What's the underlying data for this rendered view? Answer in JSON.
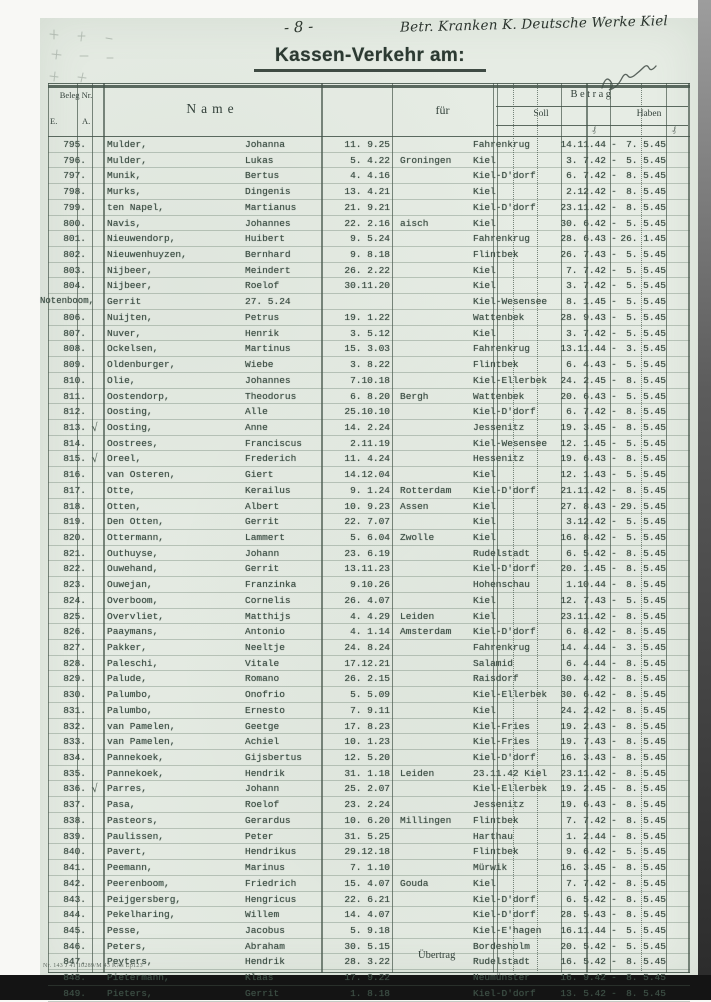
{
  "page": {
    "page_number": "- 8 -",
    "annotation_top": "Betr. Kranken K. Deutsche Werke Kiel",
    "title": "Kassen-Verkehr am:",
    "uebertrag_label": "Übertrag",
    "footer_code": "Nr. 143 J 41 10289/M 43 KAs Ep123",
    "paper_color": "#e6ece4",
    "ink_color": "#3d4f45",
    "rule_color": "#425248"
  },
  "table": {
    "headers": {
      "beleg_nr": "Beleg Nr.",
      "beleg_e": "E.",
      "beleg_a": "A.",
      "name": "Name",
      "fuer": "für",
      "betrag": "Betrag",
      "soll": "Soll",
      "haben": "Haben",
      "pfennig_mark": "₰"
    },
    "check_glyph": "√",
    "date_separator": "-",
    "rows": [
      {
        "nr": "795.",
        "surname": "Mulder,",
        "firstname": "Johanna",
        "birth": "11. 9.25",
        "fuer": "",
        "place": "Fahrenkrug",
        "soll": "14.11.44",
        "haben": "7. 5.45"
      },
      {
        "nr": "796.",
        "surname": "Mulder,",
        "firstname": "Lukas",
        "birth": "5. 4.22",
        "fuer": "Groningen",
        "place": "Kiel",
        "soll": "3. 7.42",
        "haben": "5. 5.45"
      },
      {
        "nr": "797.",
        "surname": "Munik,",
        "firstname": "Bertus",
        "birth": "4. 4.16",
        "fuer": "",
        "place": "Kiel-D'dorf",
        "soll": "6. 7.42",
        "haben": "8. 5.45"
      },
      {
        "nr": "798.",
        "surname": "Murks,",
        "firstname": "Dingenis",
        "birth": "13. 4.21",
        "fuer": "",
        "place": "Kiel",
        "soll": "2.12.42",
        "haben": "8. 5.45"
      },
      {
        "nr": "799.",
        "surname": "ten Napel,",
        "firstname": "Martianus",
        "birth": "21. 9.21",
        "fuer": "",
        "place": "Kiel-D'dorf",
        "soll": "23.11.42",
        "haben": "8. 5.45"
      },
      {
        "nr": "800.",
        "surname": "Navis,",
        "firstname": "Johannes",
        "birth": "22. 2.16",
        "fuer": "aisch",
        "place": "Kiel",
        "soll": "30. 6.42",
        "haben": "5. 5.45"
      },
      {
        "nr": "801.",
        "surname": "Nieuwendorp,",
        "firstname": "Huibert",
        "birth": "9. 5.24",
        "fuer": "",
        "place": "Fahrenkrug",
        "soll": "28. 6.43",
        "haben": "26. 1.45"
      },
      {
        "nr": "802.",
        "surname": "Nieuwenhuyzen,",
        "firstname": "Bernhard",
        "birth": "9. 8.18",
        "fuer": "",
        "place": "Flintbek",
        "soll": "26. 7.43",
        "haben": "5. 5.45"
      },
      {
        "nr": "803.",
        "surname": "Nijbeer,",
        "firstname": "Meindert",
        "birth": "26. 2.22",
        "fuer": "",
        "place": "Kiel",
        "soll": "7. 7.42",
        "haben": "5. 5.45"
      },
      {
        "nr": "804.",
        "surname": "Nijbeer,",
        "firstname": "Roelof",
        "birth": "30.11.20",
        "fuer": "",
        "place": "Kiel",
        "soll": "3. 7.42",
        "haben": "5. 5.45"
      },
      {
        "nr": "Notenboom,",
        "surname": "Gerrit",
        "firstname": "27. 5.24",
        "birth": "",
        "fuer": "",
        "place": "Kiel-Wesensee",
        "soll": "8. 1.45",
        "haben": "5. 5.45"
      },
      {
        "nr": "806.",
        "surname": "Nuijten,",
        "firstname": "Petrus",
        "birth": "19. 1.22",
        "fuer": "",
        "place": "Wattenbek",
        "soll": "28. 9.43",
        "haben": "5. 5.45"
      },
      {
        "nr": "807.",
        "surname": "Nuver,",
        "firstname": "Henrik",
        "birth": "3. 5.12",
        "fuer": "",
        "place": "Kiel",
        "soll": "3. 7.42",
        "haben": "5. 5.45"
      },
      {
        "nr": "808.",
        "surname": "Ockelsen,",
        "firstname": "Martinus",
        "birth": "15. 3.03",
        "fuer": "",
        "place": "Fahrenkrug",
        "soll": "13.11.44",
        "haben": "3. 5.45"
      },
      {
        "nr": "809.",
        "surname": "Oldenburger,",
        "firstname": "Wiebe",
        "birth": "3. 8.22",
        "fuer": "",
        "place": "Flintbek",
        "soll": "6. 4.43",
        "haben": "5. 5.45"
      },
      {
        "nr": "810.",
        "surname": "Olie,",
        "firstname": "Johannes",
        "birth": "7.10.18",
        "fuer": "",
        "place": "Kiel-Ellerbek",
        "soll": "24. 2.45",
        "haben": "8. 5.45"
      },
      {
        "nr": "811.",
        "surname": "Oostendorp,",
        "firstname": "Theodorus",
        "birth": "6. 8.20",
        "fuer": "Bergh",
        "place": "Wattenbek",
        "soll": "20. 6.43",
        "haben": "5. 5.45"
      },
      {
        "nr": "812.",
        "surname": "Oosting,",
        "firstname": "Alle",
        "birth": "25.10.10",
        "fuer": "",
        "place": "Kiel-D'dorf",
        "soll": "6. 7.42",
        "haben": "8. 5.45"
      },
      {
        "nr": "813.",
        "check": true,
        "surname": "Oosting,",
        "firstname": "Anne",
        "birth": "14. 2.24",
        "fuer": "",
        "place": "Jessenitz",
        "soll": "19. 3.45",
        "haben": "8. 5.45"
      },
      {
        "nr": "814.",
        "surname": "Oostrees,",
        "firstname": "Franciscus",
        "birth": "2.11.19",
        "fuer": "",
        "place": "Kiel-Wesensee",
        "soll": "12. 1.45",
        "haben": "5. 5.45"
      },
      {
        "nr": "815.",
        "check": true,
        "surname": "Oreel,",
        "firstname": "Frederich",
        "birth": "11. 4.24",
        "fuer": "",
        "place": "Hessenitz",
        "soll": "19. 6.43",
        "haben": "8. 5.45"
      },
      {
        "nr": "816.",
        "surname": "van Osteren,",
        "firstname": "Giert",
        "birth": "14.12.04",
        "fuer": "",
        "place": "Kiel",
        "soll": "12. 1.43",
        "haben": "5. 5.45"
      },
      {
        "nr": "817.",
        "surname": "Otte,",
        "firstname": "Kerailus",
        "birth": "9. 1.24",
        "fuer": "Rotterdam",
        "place": "Kiel-D'dorf",
        "soll": "21.11.42",
        "haben": "8. 5.45"
      },
      {
        "nr": "818.",
        "surname": "Otten,",
        "firstname": "Albert",
        "birth": "10. 9.23",
        "fuer": "Assen",
        "place": "Kiel",
        "soll": "27. 8.43",
        "haben": "29. 5.45"
      },
      {
        "nr": "819.",
        "surname": "Den Otten,",
        "firstname": "Gerrit",
        "birth": "22. 7.07",
        "fuer": "",
        "place": "Kiel",
        "soll": "3.12.42",
        "haben": "5. 5.45"
      },
      {
        "nr": "820.",
        "surname": "Ottermann,",
        "firstname": "Lammert",
        "birth": "5. 6.04",
        "fuer": "Zwolle",
        "place": "Kiel",
        "soll": "16. 8.42",
        "haben": "5. 5.45"
      },
      {
        "nr": "821.",
        "surname": "Outhuyse,",
        "firstname": "Johann",
        "birth": "23. 6.19",
        "fuer": "",
        "place": "Rudelstadt",
        "soll": "6. 5.42",
        "haben": "8. 5.45"
      },
      {
        "nr": "822.",
        "surname": "Ouwehand,",
        "firstname": "Gerrit",
        "birth": "13.11.23",
        "fuer": "",
        "place": "Kiel-D'dorf",
        "soll": "20. 1.45",
        "haben": "8. 5.45"
      },
      {
        "nr": "823.",
        "surname": "Ouwejan,",
        "firstname": "Franzinka",
        "birth": "9.10.26",
        "fuer": "",
        "place": "Hohenschau",
        "soll": "1.10.44",
        "haben": "8. 5.45"
      },
      {
        "nr": "824.",
        "surname": "Overboom,",
        "firstname": "Cornelis",
        "birth": "26. 4.07",
        "fuer": "",
        "place": "Kiel",
        "soll": "12. 7.43",
        "haben": "5. 5.45"
      },
      {
        "nr": "825.",
        "surname": "Overvliet,",
        "firstname": "Matthijs",
        "birth": "4. 4.29",
        "fuer": "Leiden",
        "place": "Kiel",
        "soll": "23.11.42",
        "haben": "8. 5.45"
      },
      {
        "nr": "826.",
        "surname": "Paaymans,",
        "firstname": "Antonio",
        "birth": "4. 1.14",
        "fuer": "Amsterdam",
        "place": "Kiel-D'dorf",
        "soll": "6. 8.42",
        "haben": "8. 5.45"
      },
      {
        "nr": "827.",
        "surname": "Pakker,",
        "firstname": "Neeltje",
        "birth": "24. 8.24",
        "fuer": "",
        "place": "Fahrenkrug",
        "soll": "14. 4.44",
        "haben": "3. 5.45"
      },
      {
        "nr": "828.",
        "surname": "Paleschi,",
        "firstname": "Vitale",
        "birth": "17.12.21",
        "fuer": "",
        "place": "Salamid",
        "soll": "6. 4.44",
        "haben": "8. 5.45"
      },
      {
        "nr": "829.",
        "surname": "Palude,",
        "firstname": "Romano",
        "birth": "26. 2.15",
        "fuer": "",
        "place": "Raisdorf",
        "soll": "30. 4.42",
        "haben": "8. 5.45"
      },
      {
        "nr": "830.",
        "surname": "Palumbo,",
        "firstname": "Onofrio",
        "birth": "5. 5.09",
        "fuer": "",
        "place": "Kiel-Ellerbek",
        "soll": "30. 6.42",
        "haben": "8. 5.45"
      },
      {
        "nr": "831.",
        "surname": "Palumbo,",
        "firstname": "Ernesto",
        "birth": "7. 9.11",
        "fuer": "",
        "place": "Kiel",
        "soll": "24. 2.42",
        "haben": "8. 5.45"
      },
      {
        "nr": "832.",
        "surname": "van Pamelen,",
        "firstname": "Geetge",
        "birth": "17. 8.23",
        "fuer": "",
        "place": "Kiel-Fries",
        "soll": "19. 2.43",
        "haben": "8. 5.45"
      },
      {
        "nr": "833.",
        "surname": "van Pamelen,",
        "firstname": "Achiel",
        "birth": "10. 1.23",
        "fuer": "",
        "place": "Kiel-Fries",
        "soll": "19. 7.43",
        "haben": "8. 5.45"
      },
      {
        "nr": "834.",
        "surname": "Pannekoek,",
        "firstname": "Gijsbertus",
        "birth": "12. 5.20",
        "fuer": "",
        "place": "Kiel-D'dorf",
        "soll": "16. 3.43",
        "haben": "8. 5.45"
      },
      {
        "nr": "835.",
        "surname": "Pannekoek,",
        "firstname": "Hendrik",
        "birth": "31. 1.18",
        "fuer": "Leiden",
        "place": "23.11.42 Kiel",
        "soll": "23.11.42",
        "haben": "8. 5.45"
      },
      {
        "nr": "836.",
        "check": true,
        "surname": "Parres,",
        "firstname": "Johann",
        "birth": "25. 2.07",
        "fuer": "",
        "place": "Kiel-Ellerbek",
        "soll": "19. 2.45",
        "haben": "8. 5.45"
      },
      {
        "nr": "837.",
        "surname": "Pasa,",
        "firstname": "Roelof",
        "birth": "23. 2.24",
        "fuer": "",
        "place": "Jessenitz",
        "soll": "19. 6.43",
        "haben": "8. 5.45"
      },
      {
        "nr": "838.",
        "surname": "Pasteors,",
        "firstname": "Gerardus",
        "birth": "10. 6.20",
        "fuer": "Millingen",
        "place": "Flintbek",
        "soll": "7. 7.42",
        "haben": "8. 5.45"
      },
      {
        "nr": "839.",
        "surname": "Paulissen,",
        "firstname": "Peter",
        "birth": "31. 5.25",
        "fuer": "",
        "place": "Harthau",
        "soll": "1. 2.44",
        "haben": "8. 5.45"
      },
      {
        "nr": "840.",
        "surname": "Pavert,",
        "firstname": "Hendrikus",
        "birth": "29.12.18",
        "fuer": "",
        "place": "Flintbek",
        "soll": "9. 6.42",
        "haben": "5. 5.45"
      },
      {
        "nr": "841.",
        "surname": "Peemann,",
        "firstname": "Marinus",
        "birth": "7. 1.10",
        "fuer": "",
        "place": "Mürwik",
        "soll": "16. 3.45",
        "haben": "8. 5.45"
      },
      {
        "nr": "842.",
        "surname": "Peerenboom,",
        "firstname": "Friedrich",
        "birth": "15. 4.07",
        "fuer": "Gouda",
        "place": "Kiel",
        "soll": "7. 7.42",
        "haben": "8. 5.45"
      },
      {
        "nr": "843.",
        "surname": "Peijgersberg,",
        "firstname": "Hengricus",
        "birth": "22. 6.21",
        "fuer": "",
        "place": "Kiel-D'dorf",
        "soll": "6. 5.42",
        "haben": "8. 5.45"
      },
      {
        "nr": "844.",
        "surname": "Pekelharing,",
        "firstname": "Willem",
        "birth": "14. 4.07",
        "fuer": "",
        "place": "Kiel-D'dorf",
        "soll": "28. 5.43",
        "haben": "8. 5.45"
      },
      {
        "nr": "845.",
        "surname": "Pesse,",
        "firstname": "Jacobus",
        "birth": "5. 9.18",
        "fuer": "",
        "place": "Kiel-E'hagen",
        "soll": "16.11.44",
        "haben": "5. 5.45"
      },
      {
        "nr": "846.",
        "surname": "Peters,",
        "firstname": "Abraham",
        "birth": "30. 5.15",
        "fuer": "",
        "place": "Bordesholm",
        "soll": "20. 5.42",
        "haben": "5. 5.45"
      },
      {
        "nr": "847.",
        "surname": "Peyters,",
        "firstname": "Hendrik",
        "birth": "28. 3.22",
        "fuer": "",
        "place": "Rudelstadt",
        "soll": "16. 5.42",
        "haben": "8. 5.45"
      },
      {
        "nr": "848.",
        "surname": "Pietermann,",
        "firstname": "Klaas",
        "birth": "17. 9.22",
        "fuer": "",
        "place": "Neumünster",
        "soll": "16. 9.42",
        "haben": "8. 5.45"
      },
      {
        "nr": "849.",
        "surname": "Pieters,",
        "firstname": "Gerrit",
        "birth": "1. 8.18",
        "fuer": "",
        "place": "Kiel-D'dorf",
        "soll": "13. 5.42",
        "haben": "8. 5.45"
      }
    ]
  }
}
